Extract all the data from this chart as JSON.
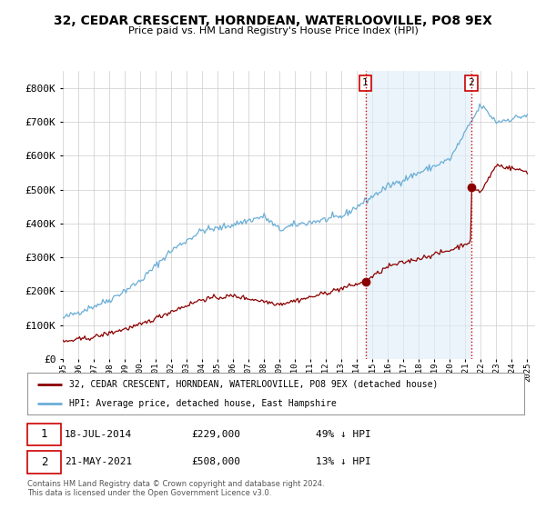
{
  "title": "32, CEDAR CRESCENT, HORNDEAN, WATERLOOVILLE, PO8 9EX",
  "subtitle": "Price paid vs. HM Land Registry's House Price Index (HPI)",
  "hpi_color": "#6baed6",
  "hpi_fill_color": "#ddeef8",
  "price_color": "#8b0000",
  "dashed_color": "#cc0000",
  "ylim": [
    0,
    850000
  ],
  "yticks": [
    0,
    100000,
    200000,
    300000,
    400000,
    500000,
    600000,
    700000,
    800000
  ],
  "sale1_date": 2014.54,
  "sale1_price": 229000,
  "sale2_date": 2021.38,
  "sale2_price": 508000,
  "legend_red_label": "32, CEDAR CRESCENT, HORNDEAN, WATERLOOVILLE, PO8 9EX (detached house)",
  "legend_blue_label": "HPI: Average price, detached house, East Hampshire",
  "background_color": "#ffffff",
  "grid_color": "#cccccc",
  "footnote": "Contains HM Land Registry data © Crown copyright and database right 2024.\nThis data is licensed under the Open Government Licence v3.0."
}
